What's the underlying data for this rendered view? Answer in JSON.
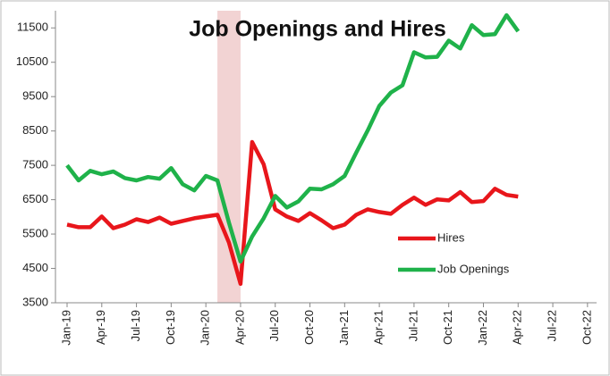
{
  "chart_data": {
    "type": "line",
    "title": "Job Openings and Hires",
    "categories": [
      "Jan-19",
      null,
      null,
      "Apr-19",
      null,
      null,
      "Jul-19",
      null,
      null,
      "Oct-19",
      null,
      null,
      "Jan-20",
      null,
      null,
      "Apr-20",
      null,
      null,
      "Jul-20",
      null,
      null,
      "Oct-20",
      null,
      null,
      "Jan-21",
      null,
      null,
      "Apr-21",
      null,
      null,
      "Jul-21",
      null,
      null,
      "Oct-21",
      null,
      null,
      "Jan-22",
      null,
      null,
      "Apr-22",
      null,
      null,
      "Jul-22",
      null,
      null,
      "Oct-22"
    ],
    "series": [
      {
        "name": "Hires",
        "color": "#e8161b",
        "values": [
          5775,
          5700,
          5700,
          6010,
          5670,
          5775,
          5930,
          5850,
          5980,
          5800,
          5880,
          5960,
          6010,
          6060,
          5250,
          4050,
          8180,
          7530,
          6220,
          6010,
          5880,
          6110,
          5900,
          5670,
          5775,
          6060,
          6220,
          6140,
          6090,
          6350,
          6560,
          6350,
          6510,
          6480,
          6720,
          6430,
          6460,
          6820,
          6640,
          6590,
          null,
          null,
          null,
          null,
          null,
          null
        ]
      },
      {
        "name": "Job Openings",
        "color": "#1fb24a",
        "values": [
          7500,
          7060,
          7340,
          7240,
          7320,
          7130,
          7060,
          7160,
          7110,
          7420,
          6950,
          6770,
          7190,
          7060,
          5830,
          4700,
          5430,
          5960,
          6610,
          6270,
          6450,
          6820,
          6800,
          6950,
          7190,
          7870,
          8520,
          9230,
          9620,
          9830,
          10790,
          10640,
          10660,
          11130,
          10900,
          11580,
          11290,
          11320,
          11870,
          11400,
          null,
          null,
          null,
          null,
          null,
          null
        ]
      }
    ],
    "ylim": [
      3500,
      12000
    ],
    "yticks": [
      3500,
      4500,
      5500,
      6500,
      7500,
      8500,
      9500,
      10500,
      11500
    ],
    "grid": false,
    "legend": "lower right",
    "shade": {
      "start": 13,
      "end": 15,
      "color": "#f2d3d3"
    }
  }
}
